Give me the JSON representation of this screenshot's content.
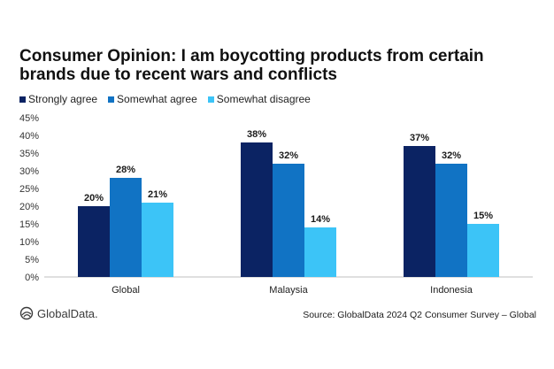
{
  "chart_data": {
    "type": "bar",
    "title": "Consumer Opinion: I am boycotting products from certain brands due to recent wars and conflicts",
    "categories": [
      "Global",
      "Malaysia",
      "Indonesia"
    ],
    "series": [
      {
        "name": "Strongly agree",
        "color": "#0b2363",
        "values": [
          20,
          38,
          37
        ]
      },
      {
        "name": "Somewhat agree",
        "color": "#1173c4",
        "values": [
          28,
          32,
          32
        ]
      },
      {
        "name": "Somewhat disagree",
        "color": "#3cc4f7",
        "values": [
          21,
          14,
          15
        ]
      }
    ],
    "value_suffix": "%",
    "ylim": [
      0,
      45
    ],
    "yticks": [
      "0%",
      "5%",
      "10%",
      "15%",
      "20%",
      "25%",
      "30%",
      "35%",
      "40%",
      "45%"
    ],
    "xlabel": "",
    "ylabel": "",
    "legend": "top-left",
    "grid": false
  },
  "footer": {
    "brand": "GlobalData.",
    "source": "Source: GlobalData 2024 Q2 Consumer Survey – Global"
  }
}
